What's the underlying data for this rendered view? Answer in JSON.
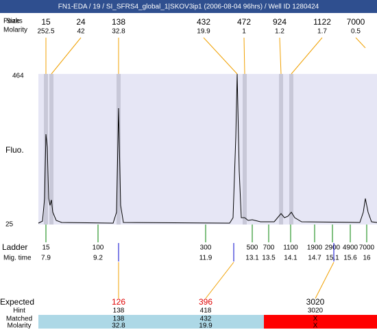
{
  "header": {
    "title": "FN1-EDA / 19 / SI_SFRS4_global_1|SKOV3ip1 (2006-08-04 96hrs) / Well ID 1280424"
  },
  "peaks": {
    "label": "Peaks",
    "size_label": "Size",
    "molarity_label": "Molarity",
    "sizes": [
      "15",
      "24",
      "138",
      "432",
      "472",
      "924",
      "1122",
      "7000"
    ],
    "molarities": [
      "252.5",
      "42",
      "32.8",
      "19.9",
      "1",
      "1.2",
      "1.7",
      "0.5"
    ]
  },
  "plot": {
    "y_label": "Fluo.",
    "y_max": "464",
    "y_min": "25"
  },
  "ladder": {
    "label": "Ladder",
    "time_label": "Mig. time",
    "sizes": [
      "15",
      "100",
      "300",
      "500",
      "700",
      "1100",
      "1900",
      "2900",
      "4900",
      "7000"
    ],
    "times": [
      "7.9",
      "9.2",
      "11.9",
      "13.1",
      "13.5",
      "14.1",
      "14.7",
      "15.1",
      "15.6",
      "16"
    ]
  },
  "expected": {
    "label": "Expected",
    "hint_label": "Hint",
    "matched_label": "Matched",
    "molarity_label": "Molarity",
    "rows": [
      {
        "expected": "126",
        "hint": "138",
        "matched": "138",
        "molarity": "32.8"
      },
      {
        "expected": "396",
        "hint": "418",
        "matched": "432",
        "molarity": "19.9"
      },
      {
        "expected": "3020",
        "hint": "3020",
        "matched": "X",
        "molarity": "X"
      }
    ]
  }
}
